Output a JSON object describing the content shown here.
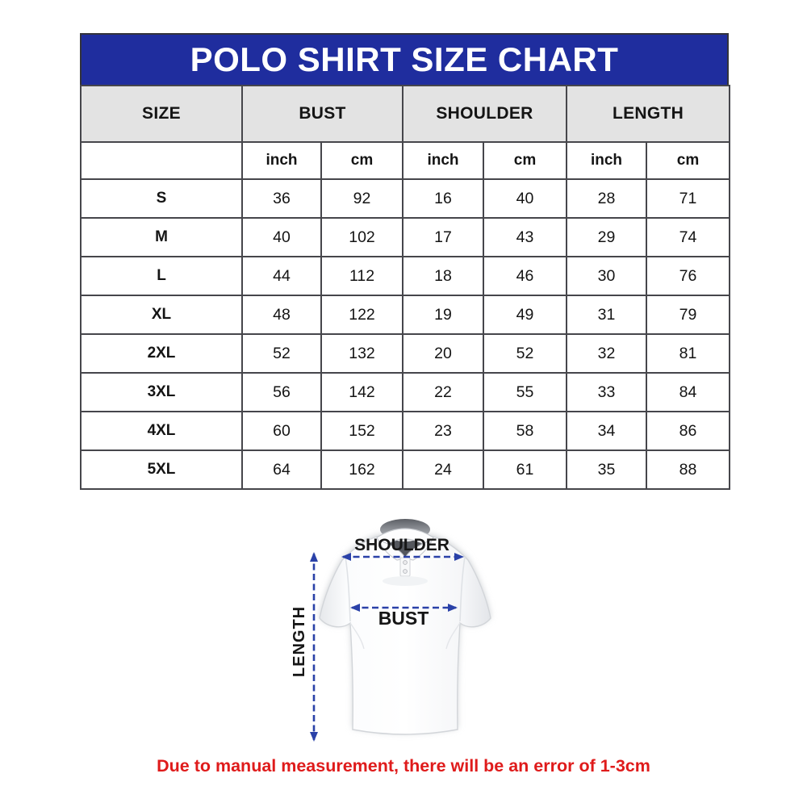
{
  "title": "POLO SHIRT SIZE CHART",
  "chart_data": {
    "type": "table",
    "title": "POLO SHIRT SIZE CHART",
    "group_headers": [
      "SIZE",
      "BUST",
      "SHOULDER",
      "LENGTH"
    ],
    "unit_headers": [
      "inch",
      "cm",
      "inch",
      "cm",
      "inch",
      "cm"
    ],
    "rows": [
      {
        "size": "S",
        "values": [
          36,
          92,
          16,
          40,
          28,
          71
        ]
      },
      {
        "size": "M",
        "values": [
          40,
          102,
          17,
          43,
          29,
          74
        ]
      },
      {
        "size": "L",
        "values": [
          44,
          112,
          18,
          46,
          30,
          76
        ]
      },
      {
        "size": "XL",
        "values": [
          48,
          122,
          19,
          49,
          31,
          79
        ]
      },
      {
        "size": "2XL",
        "values": [
          52,
          132,
          20,
          52,
          32,
          81
        ]
      },
      {
        "size": "3XL",
        "values": [
          56,
          142,
          22,
          55,
          33,
          84
        ]
      },
      {
        "size": "4XL",
        "values": [
          60,
          152,
          23,
          58,
          34,
          86
        ]
      },
      {
        "size": "5XL",
        "values": [
          64,
          162,
          24,
          61,
          35,
          88
        ]
      }
    ]
  },
  "diagram": {
    "shoulder_label": "SHOULDER",
    "bust_label": "BUST",
    "length_label": "LENGTH"
  },
  "note": "Due to manual measurement, there will be an error of 1-3cm",
  "colors": {
    "banner_blue": "#1f2d9e",
    "header_gray": "#e3e3e3",
    "arrow_blue": "#2a41a8",
    "note_red": "#df1b1b",
    "border_dark": "#46464b"
  }
}
